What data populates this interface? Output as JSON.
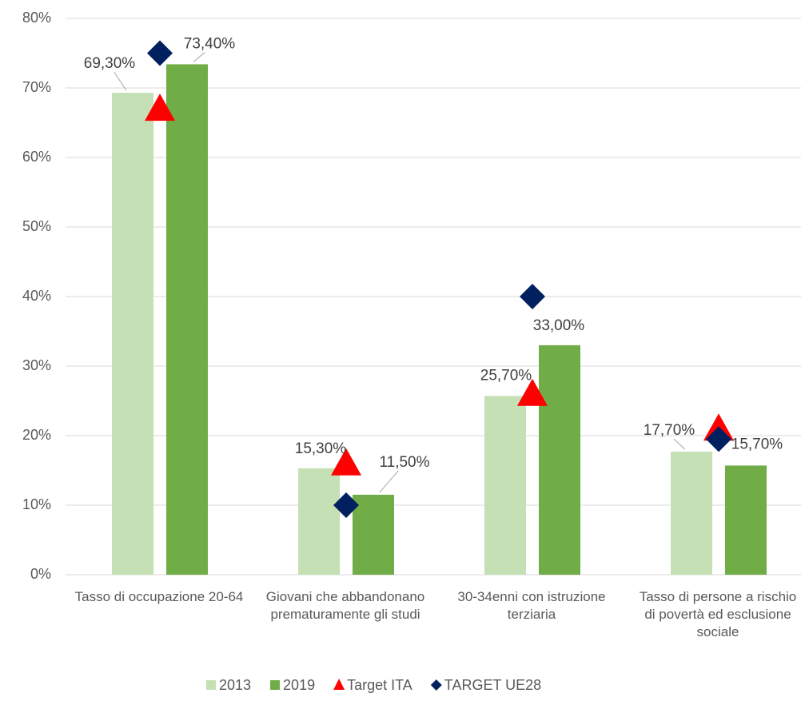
{
  "chart_data": {
    "type": "bar",
    "categories": [
      "Tasso di occupazione 20-64",
      "Giovani che abbandonano prematuramente gli studi",
      "30-34enni con istruzione terziaria",
      "Tasso di persone a rischio di povertà ed esclusione sociale"
    ],
    "series": [
      {
        "name": "2013",
        "type": "bar",
        "color": "#c5e0b4",
        "values": [
          69.3,
          15.3,
          25.7,
          17.7
        ],
        "value_labels": [
          "69,30%",
          "15,30%",
          "25,70%",
          "17,70%"
        ]
      },
      {
        "name": "2019",
        "type": "bar",
        "color": "#70ad47",
        "values": [
          73.4,
          11.5,
          33.0,
          15.7
        ],
        "value_labels": [
          "73,40%",
          "11,50%",
          "33,00%",
          "15,70%"
        ]
      },
      {
        "name": "Target ITA",
        "type": "triangle",
        "color": "#ff0000",
        "values": [
          67,
          16,
          26,
          21
        ]
      },
      {
        "name": "TARGET UE28",
        "type": "diamond",
        "color": "#002060",
        "values": [
          75,
          10,
          40,
          19.5
        ]
      }
    ],
    "ylim": [
      0,
      80
    ],
    "yticks": [
      {
        "value": 0,
        "label": "0%"
      },
      {
        "value": 10,
        "label": "10%"
      },
      {
        "value": 20,
        "label": "20%"
      },
      {
        "value": 30,
        "label": "30%"
      },
      {
        "value": 40,
        "label": "40%"
      },
      {
        "value": 50,
        "label": "50%"
      },
      {
        "value": 60,
        "label": "60%"
      },
      {
        "value": 70,
        "label": "70%"
      },
      {
        "value": 80,
        "label": "80%"
      }
    ],
    "grid": true,
    "legend": "bottom"
  }
}
